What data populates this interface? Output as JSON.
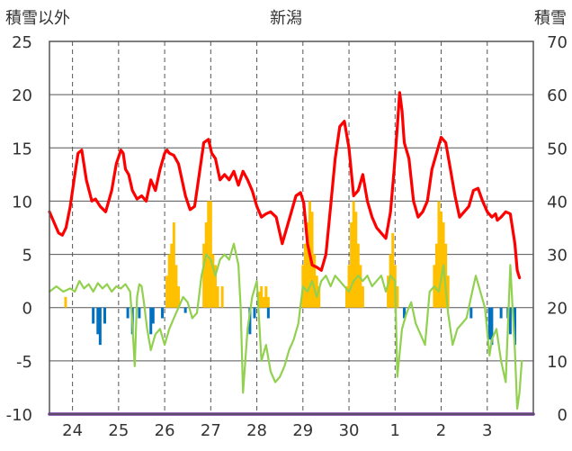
{
  "chart_data": {
    "type": "bar",
    "title": "新潟",
    "left_axis": {
      "title": "積雪以外",
      "ylim": [
        -10,
        25
      ],
      "ticks": [
        -10,
        -5,
        0,
        5,
        10,
        15,
        20,
        25
      ]
    },
    "right_axis": {
      "title": "積雪",
      "ylim": [
        0,
        70
      ],
      "ticks": [
        0,
        10,
        20,
        30,
        40,
        50,
        60,
        70
      ]
    },
    "x_axis": {
      "xlim": [
        0,
        10.5
      ],
      "tick_labels": [
        "24",
        "25",
        "26",
        "27",
        "28",
        "29",
        "30",
        "1",
        "2",
        "3"
      ],
      "tick_positions": [
        0.5,
        1.5,
        2.5,
        3.5,
        4.5,
        5.5,
        6.5,
        7.5,
        8.5,
        9.5
      ]
    },
    "grid": true,
    "colors": {
      "temperature": "#ff0000",
      "dewpoint": "#92d050",
      "snowfall": "#ffc000",
      "negative_change": "#0070c0",
      "snow_depth": "#7030a0",
      "grid": "#555555"
    },
    "series": [
      {
        "axis": "left",
        "kind": "line",
        "color": "#ff0000",
        "x": [
          0.0,
          0.1,
          0.2,
          0.28,
          0.36,
          0.45,
          0.55,
          0.62,
          0.7,
          0.8,
          0.92,
          1.0,
          1.1,
          1.22,
          1.35,
          1.45,
          1.55,
          1.6,
          1.65,
          1.72,
          1.8,
          1.9,
          2.0,
          2.1,
          2.2,
          2.3,
          2.4,
          2.5,
          2.55,
          2.6,
          2.7,
          2.8,
          2.95,
          3.05,
          3.15,
          3.25,
          3.35,
          3.45,
          3.52,
          3.6,
          3.7,
          3.8,
          3.9,
          4.0,
          4.1,
          4.2,
          4.3,
          4.4,
          4.5,
          4.6,
          4.7,
          4.8,
          4.92,
          5.05,
          5.15,
          5.25,
          5.35,
          5.45,
          5.52,
          5.6,
          5.7,
          5.8,
          5.9,
          6.0,
          6.1,
          6.2,
          6.3,
          6.4,
          6.5,
          6.6,
          6.7,
          6.8,
          6.9,
          7.0,
          7.1,
          7.2,
          7.3,
          7.4,
          7.48,
          7.55,
          7.6,
          7.65,
          7.7,
          7.8,
          7.9,
          8.0,
          8.1,
          8.2,
          8.3,
          8.4,
          8.5,
          8.6,
          8.7,
          8.8,
          8.9,
          9.0,
          9.1,
          9.2,
          9.3,
          9.4,
          9.5,
          9.6,
          9.68,
          9.72,
          9.8,
          9.9,
          10.0,
          10.1,
          10.15,
          10.2
        ],
        "y": [
          9.0,
          8.0,
          7.0,
          6.8,
          7.5,
          9.5,
          12.5,
          14.5,
          14.8,
          12.0,
          10.0,
          10.2,
          9.5,
          9.0,
          11.0,
          13.5,
          14.8,
          14.5,
          13.0,
          12.5,
          11.0,
          10.2,
          10.5,
          10.0,
          12.0,
          11.0,
          13.0,
          14.5,
          14.8,
          14.5,
          14.3,
          13.5,
          10.5,
          9.2,
          9.5,
          12.5,
          15.5,
          15.8,
          14.5,
          14.0,
          12.0,
          12.5,
          12.0,
          12.8,
          11.5,
          12.8,
          12.0,
          11.0,
          9.5,
          8.5,
          8.8,
          9.0,
          8.5,
          6.0,
          7.5,
          9.0,
          10.5,
          10.8,
          9.8,
          6.0,
          4.0,
          3.8,
          3.5,
          5.0,
          9.5,
          14.0,
          17.0,
          17.5,
          15.0,
          10.5,
          11.0,
          12.5,
          10.0,
          8.5,
          7.5,
          7.0,
          6.5,
          9.0,
          13.0,
          17.0,
          20.2,
          18.5,
          15.5,
          14.0,
          10.0,
          8.5,
          9.0,
          10.0,
          13.0,
          14.5,
          16.0,
          15.5,
          13.0,
          10.5,
          8.5,
          9.0,
          9.5,
          11.0,
          11.2,
          10.0,
          9.0,
          8.5,
          8.8,
          8.2,
          8.5,
          9.0,
          8.8,
          6.0,
          3.5,
          2.8
        ]
      },
      {
        "axis": "left",
        "kind": "line",
        "color": "#92d050",
        "x": [
          0.0,
          0.15,
          0.3,
          0.45,
          0.55,
          0.65,
          0.75,
          0.85,
          0.95,
          1.05,
          1.15,
          1.25,
          1.35,
          1.45,
          1.55,
          1.65,
          1.75,
          1.8,
          1.85,
          1.9,
          1.95,
          2.0,
          2.05,
          2.12,
          2.2,
          2.3,
          2.4,
          2.5,
          2.6,
          2.7,
          2.8,
          2.9,
          3.0,
          3.1,
          3.2,
          3.3,
          3.4,
          3.5,
          3.6,
          3.7,
          3.8,
          3.9,
          4.0,
          4.1,
          4.15,
          4.2,
          4.3,
          4.4,
          4.5,
          4.6,
          4.7,
          4.8,
          4.9,
          5.0,
          5.1,
          5.2,
          5.3,
          5.4,
          5.5,
          5.6,
          5.7,
          5.8,
          5.9,
          6.0,
          6.1,
          6.2,
          6.3,
          6.4,
          6.5,
          6.6,
          6.7,
          6.8,
          6.9,
          7.0,
          7.1,
          7.2,
          7.3,
          7.4,
          7.5,
          7.55,
          7.65,
          7.75,
          7.85,
          7.95,
          8.05,
          8.15,
          8.25,
          8.35,
          8.45,
          8.55,
          8.65,
          8.75,
          8.85,
          8.95,
          9.05,
          9.15,
          9.25,
          9.35,
          9.45,
          9.55,
          9.6,
          9.7,
          9.8,
          9.9,
          10.0,
          10.05,
          10.1,
          10.15,
          10.2,
          10.25
        ],
        "y": [
          1.5,
          2.0,
          1.5,
          1.8,
          1.5,
          2.5,
          1.8,
          2.2,
          1.5,
          2.3,
          1.8,
          2.2,
          1.5,
          2.0,
          1.8,
          2.2,
          1.5,
          -1.5,
          -5.5,
          1.0,
          2.2,
          2.0,
          0.5,
          -2.0,
          -4.0,
          -2.5,
          -2.0,
          -3.5,
          -2.0,
          -1.0,
          0.0,
          1.0,
          0.5,
          -1.0,
          -0.5,
          3.0,
          5.0,
          4.5,
          3.0,
          4.5,
          5.0,
          4.5,
          6.0,
          4.0,
          0.0,
          -8.0,
          -2.0,
          1.0,
          2.5,
          -5.0,
          -3.5,
          -6.0,
          -7.0,
          -6.5,
          -5.5,
          -4.0,
          -3.0,
          -1.5,
          2.0,
          1.5,
          2.5,
          1.0,
          2.5,
          3.0,
          2.0,
          3.0,
          2.5,
          2.0,
          1.5,
          2.5,
          3.0,
          2.5,
          3.0,
          2.0,
          2.5,
          3.0,
          1.5,
          3.0,
          2.5,
          -6.5,
          -2.0,
          -0.5,
          0.5,
          -1.5,
          -2.5,
          -3.5,
          1.5,
          2.0,
          1.5,
          4.0,
          -0.5,
          -3.5,
          -2.0,
          -1.5,
          -1.0,
          1.0,
          3.0,
          1.5,
          0.0,
          -4.5,
          -3.0,
          -2.0,
          -5.0,
          -7.0,
          4.0,
          0.0,
          -4.0,
          -9.5,
          -8.0,
          -5.0
        ]
      },
      {
        "axis": "left",
        "kind": "bar",
        "color": "#ffc000",
        "x": [
          0.35,
          2.55,
          2.6,
          2.65,
          2.7,
          2.75,
          2.8,
          3.35,
          3.4,
          3.45,
          3.5,
          3.55,
          3.6,
          3.65,
          3.75,
          4.55,
          4.6,
          4.65,
          4.7,
          4.75,
          5.5,
          5.55,
          5.6,
          5.65,
          5.7,
          5.75,
          5.8,
          5.85,
          6.45,
          6.5,
          6.55,
          6.6,
          6.65,
          6.7,
          6.75,
          6.8,
          7.35,
          7.4,
          7.45,
          7.5,
          7.55,
          8.35,
          8.4,
          8.45,
          8.5,
          8.55,
          8.6,
          8.65
        ],
        "y": [
          1.0,
          3.0,
          5.0,
          6.0,
          8.0,
          4.0,
          2.0,
          6.0,
          8.0,
          10.0,
          10.0,
          5.0,
          4.0,
          2.0,
          2.0,
          1.5,
          2.0,
          1.0,
          2.0,
          1.0,
          4.0,
          6.0,
          8.0,
          10.0,
          9.0,
          5.0,
          3.0,
          2.0,
          2.0,
          4.0,
          8.0,
          10.0,
          9.0,
          6.0,
          4.0,
          2.0,
          3.0,
          5.0,
          7.0,
          4.0,
          2.0,
          4.0,
          6.0,
          10.0,
          9.0,
          8.0,
          6.0,
          3.0
        ]
      },
      {
        "axis": "left",
        "kind": "bar",
        "color": "#0070c0",
        "x": [
          0.95,
          1.05,
          1.1,
          1.2,
          1.7,
          1.8,
          1.95,
          2.2,
          2.25,
          2.45,
          2.95,
          4.35,
          4.45,
          4.75,
          7.7,
          9.15,
          9.55,
          9.6,
          9.8,
          9.95,
          10.0,
          10.1
        ],
        "y": [
          -1.5,
          -2.5,
          -3.5,
          -1.5,
          -1.0,
          -2.5,
          -1.0,
          -2.5,
          -1.5,
          -1.0,
          -0.5,
          -2.5,
          -1.0,
          -1.0,
          -1.0,
          -1.0,
          -3.0,
          -3.5,
          -1.0,
          -1.0,
          -2.5,
          -3.5
        ]
      },
      {
        "axis": "right",
        "kind": "line",
        "color": "#7030a0",
        "x": [
          0.0,
          10.5
        ],
        "y": [
          0.0,
          0.0
        ]
      }
    ]
  }
}
